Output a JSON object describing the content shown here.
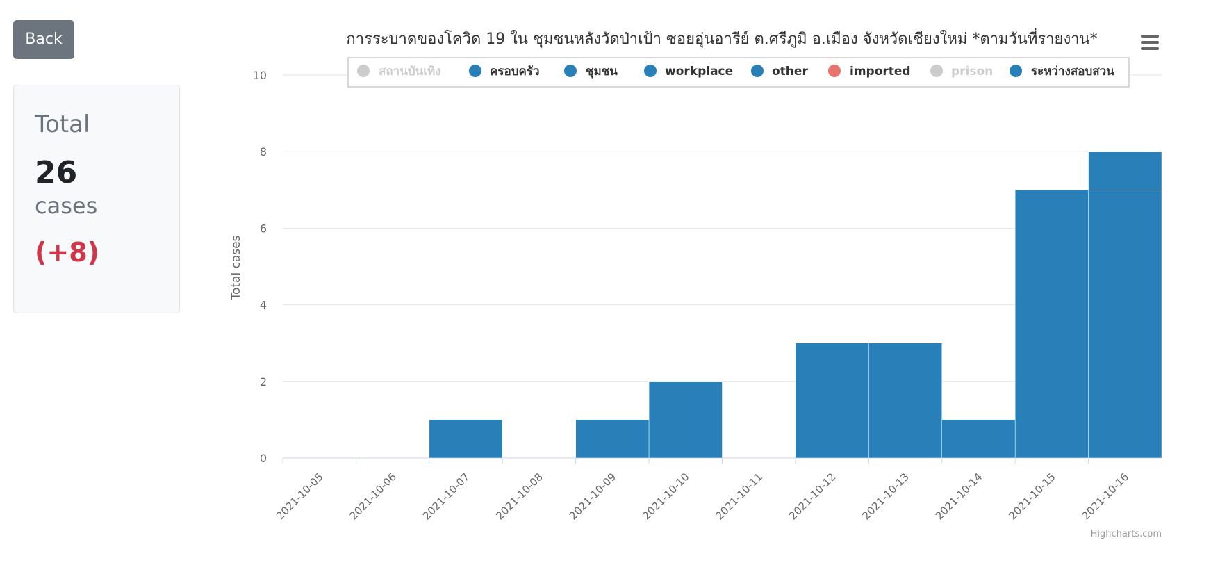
{
  "back_button": {
    "label": "Back"
  },
  "summary": {
    "label": "Total",
    "count": "26",
    "unit": "cases",
    "delta": "(+8)"
  },
  "chart_data": {
    "type": "bar",
    "stacked": true,
    "title": "การระบาดของโควิด 19 ใน ชุมชนหลังวัดป่าเป้า ซอยอุ่นอารีย์ ต.ศรีภูมิ อ.เมือง จังหวัดเชียงใหม่ *ตามวันที่รายงาน*",
    "xlabel": "",
    "ylabel": "Total cases",
    "ylim": [
      0,
      10
    ],
    "yticks": [
      0,
      2,
      4,
      6,
      8,
      10
    ],
    "grid": true,
    "legend_position": "top",
    "credits": "Highcharts.com",
    "categories": [
      "2021-10-05",
      "2021-10-06",
      "2021-10-07",
      "2021-10-08",
      "2021-10-09",
      "2021-10-10",
      "2021-10-11",
      "2021-10-12",
      "2021-10-13",
      "2021-10-14",
      "2021-10-15",
      "2021-10-16"
    ],
    "series": [
      {
        "name": "สถานบันเทิง",
        "color": "#cccccc",
        "hidden": true,
        "values": [
          0,
          0,
          0,
          0,
          0,
          0,
          0,
          0,
          0,
          0,
          0,
          0
        ]
      },
      {
        "name": "ครอบครัว",
        "color": "#2980b9",
        "hidden": false,
        "values": [
          0,
          0,
          0,
          0,
          0,
          0,
          0,
          0,
          0,
          0,
          0,
          0
        ]
      },
      {
        "name": "ชุมชน",
        "color": "#2980b9",
        "hidden": false,
        "values": [
          0,
          0,
          1,
          0,
          1,
          2,
          0,
          3,
          3,
          1,
          7,
          7
        ]
      },
      {
        "name": "workplace",
        "color": "#2980b9",
        "hidden": false,
        "values": [
          0,
          0,
          0,
          0,
          0,
          0,
          0,
          0,
          0,
          0,
          0,
          0
        ]
      },
      {
        "name": "other",
        "color": "#2980b9",
        "hidden": false,
        "values": [
          0,
          0,
          0,
          0,
          0,
          0,
          0,
          0,
          0,
          0,
          0,
          0
        ]
      },
      {
        "name": "imported",
        "color": "#e8736a",
        "hidden": false,
        "values": [
          0,
          0,
          0,
          0,
          0,
          0,
          0,
          0,
          0,
          0,
          0,
          0
        ]
      },
      {
        "name": "prison",
        "color": "#cccccc",
        "hidden": true,
        "values": [
          0,
          0,
          0,
          0,
          0,
          0,
          0,
          0,
          0,
          0,
          0,
          0
        ]
      },
      {
        "name": "ระหว่างสอบสวน",
        "color": "#2980b9",
        "hidden": false,
        "values": [
          0,
          0,
          0,
          0,
          0,
          0,
          0,
          0,
          0,
          0,
          0,
          1
        ]
      }
    ]
  }
}
